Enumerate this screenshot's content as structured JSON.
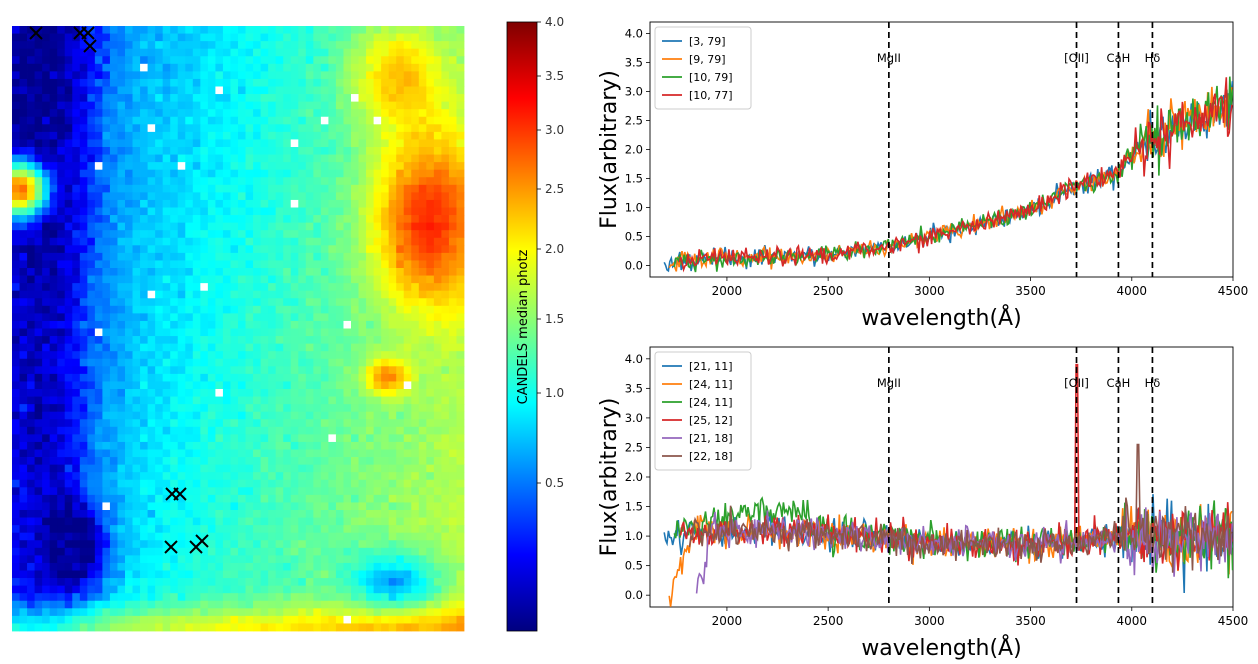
{
  "colors": {
    "jet": [
      "#00007f",
      "#0000ff",
      "#007fff",
      "#00ffff",
      "#7fff7f",
      "#ffff00",
      "#ff7f00",
      "#ff0000",
      "#7f0000"
    ],
    "c0": "#1f77b4",
    "c1": "#ff7f0e",
    "c2": "#2ca02c",
    "c3": "#d62728",
    "c4": "#9467bd",
    "c5": "#8c564b"
  },
  "chart_data": [
    {
      "type": "heatmap",
      "description_key": "photometric redshift map",
      "colorbar": {
        "label": "CANDELS median photz",
        "ticks": [
          0.5,
          1.0,
          1.5,
          2.0,
          2.5,
          3.0,
          3.5,
          4.0
        ],
        "tick_labels": [
          "0.5",
          "1.0",
          "1.5",
          "2.0",
          "2.5",
          "3.0",
          "3.5",
          "4.0"
        ],
        "range": [
          0.0,
          4.0
        ],
        "colormap": "jet",
        "scale": "nonlinear (stretched at low end)"
      },
      "grid": {
        "cols": 60,
        "rows": 80
      },
      "markers": [
        {
          "symbol": "x",
          "label": "cross-1"
        },
        {
          "symbol": "x",
          "label": "cross-2"
        },
        {
          "symbol": "x",
          "label": "cross-3"
        },
        {
          "symbol": "x",
          "label": "cross-4"
        },
        {
          "symbol": "x",
          "label": "cross-5"
        },
        {
          "symbol": "x",
          "label": "cross-6"
        },
        {
          "symbol": "x",
          "label": "cross-7"
        },
        {
          "symbol": "x",
          "label": "cross-8"
        },
        {
          "symbol": "x",
          "label": "cross-9"
        }
      ]
    },
    {
      "type": "line",
      "xlabel": "wavelength(Å)",
      "ylabel": "Flux(arbitrary)",
      "xlim": [
        1620,
        4500
      ],
      "ylim": [
        -0.2,
        4.2
      ],
      "xticks": [
        2000,
        2500,
        3000,
        3500,
        4000,
        4500
      ],
      "yticks": [
        0.0,
        0.5,
        1.0,
        1.5,
        2.0,
        2.5,
        3.0,
        3.5,
        4.0
      ],
      "legend": "top-left",
      "vlines": [
        {
          "x": 2800,
          "label": "MgII"
        },
        {
          "x": 3727,
          "label": "[OII]"
        },
        {
          "x": 3934,
          "label": "CaH"
        },
        {
          "x": 4102,
          "label": "Hδ"
        }
      ],
      "series": [
        {
          "name": "[3, 79]",
          "color": "#1f77b4"
        },
        {
          "name": "[9, 79]",
          "color": "#ff7f0e"
        },
        {
          "name": "[10, 79]",
          "color": "#2ca02c"
        },
        {
          "name": "[10, 77]",
          "color": "#d62728"
        }
      ],
      "trend": {
        "x": [
          1700,
          2000,
          2500,
          2800,
          3000,
          3500,
          3700,
          3900,
          4000,
          4100,
          4500
        ],
        "y": [
          0.05,
          0.12,
          0.18,
          0.33,
          0.5,
          0.95,
          1.35,
          1.55,
          1.9,
          2.2,
          2.85
        ]
      }
    },
    {
      "type": "line",
      "xlabel": "wavelength(Å)",
      "ylabel": "Flux(arbitrary)",
      "xlim": [
        1620,
        4500
      ],
      "ylim": [
        -0.2,
        4.2
      ],
      "xticks": [
        2000,
        2500,
        3000,
        3500,
        4000,
        4500
      ],
      "yticks": [
        0.0,
        0.5,
        1.0,
        1.5,
        2.0,
        2.5,
        3.0,
        3.5,
        4.0
      ],
      "legend": "top-left",
      "vlines": [
        {
          "x": 2800,
          "label": "MgII"
        },
        {
          "x": 3727,
          "label": "[OII]"
        },
        {
          "x": 3934,
          "label": "CaH"
        },
        {
          "x": 4102,
          "label": "Hδ"
        }
      ],
      "series": [
        {
          "name": "[21, 11]",
          "color": "#1f77b4"
        },
        {
          "name": "[24, 11]",
          "color": "#ff7f0e"
        },
        {
          "name": "[24, 11]",
          "color": "#2ca02c"
        },
        {
          "name": "[25, 12]",
          "color": "#d62728"
        },
        {
          "name": "[21, 18]",
          "color": "#9467bd"
        },
        {
          "name": "[22, 18]",
          "color": "#8c564b"
        }
      ],
      "trend": {
        "x": [
          1700,
          2000,
          2500,
          3000,
          3500,
          4000,
          4500
        ],
        "y": [
          1.0,
          1.1,
          1.05,
          0.9,
          0.85,
          1.0,
          1.0
        ]
      },
      "emission_peak": {
        "x": 3727,
        "y": 3.9
      }
    }
  ]
}
